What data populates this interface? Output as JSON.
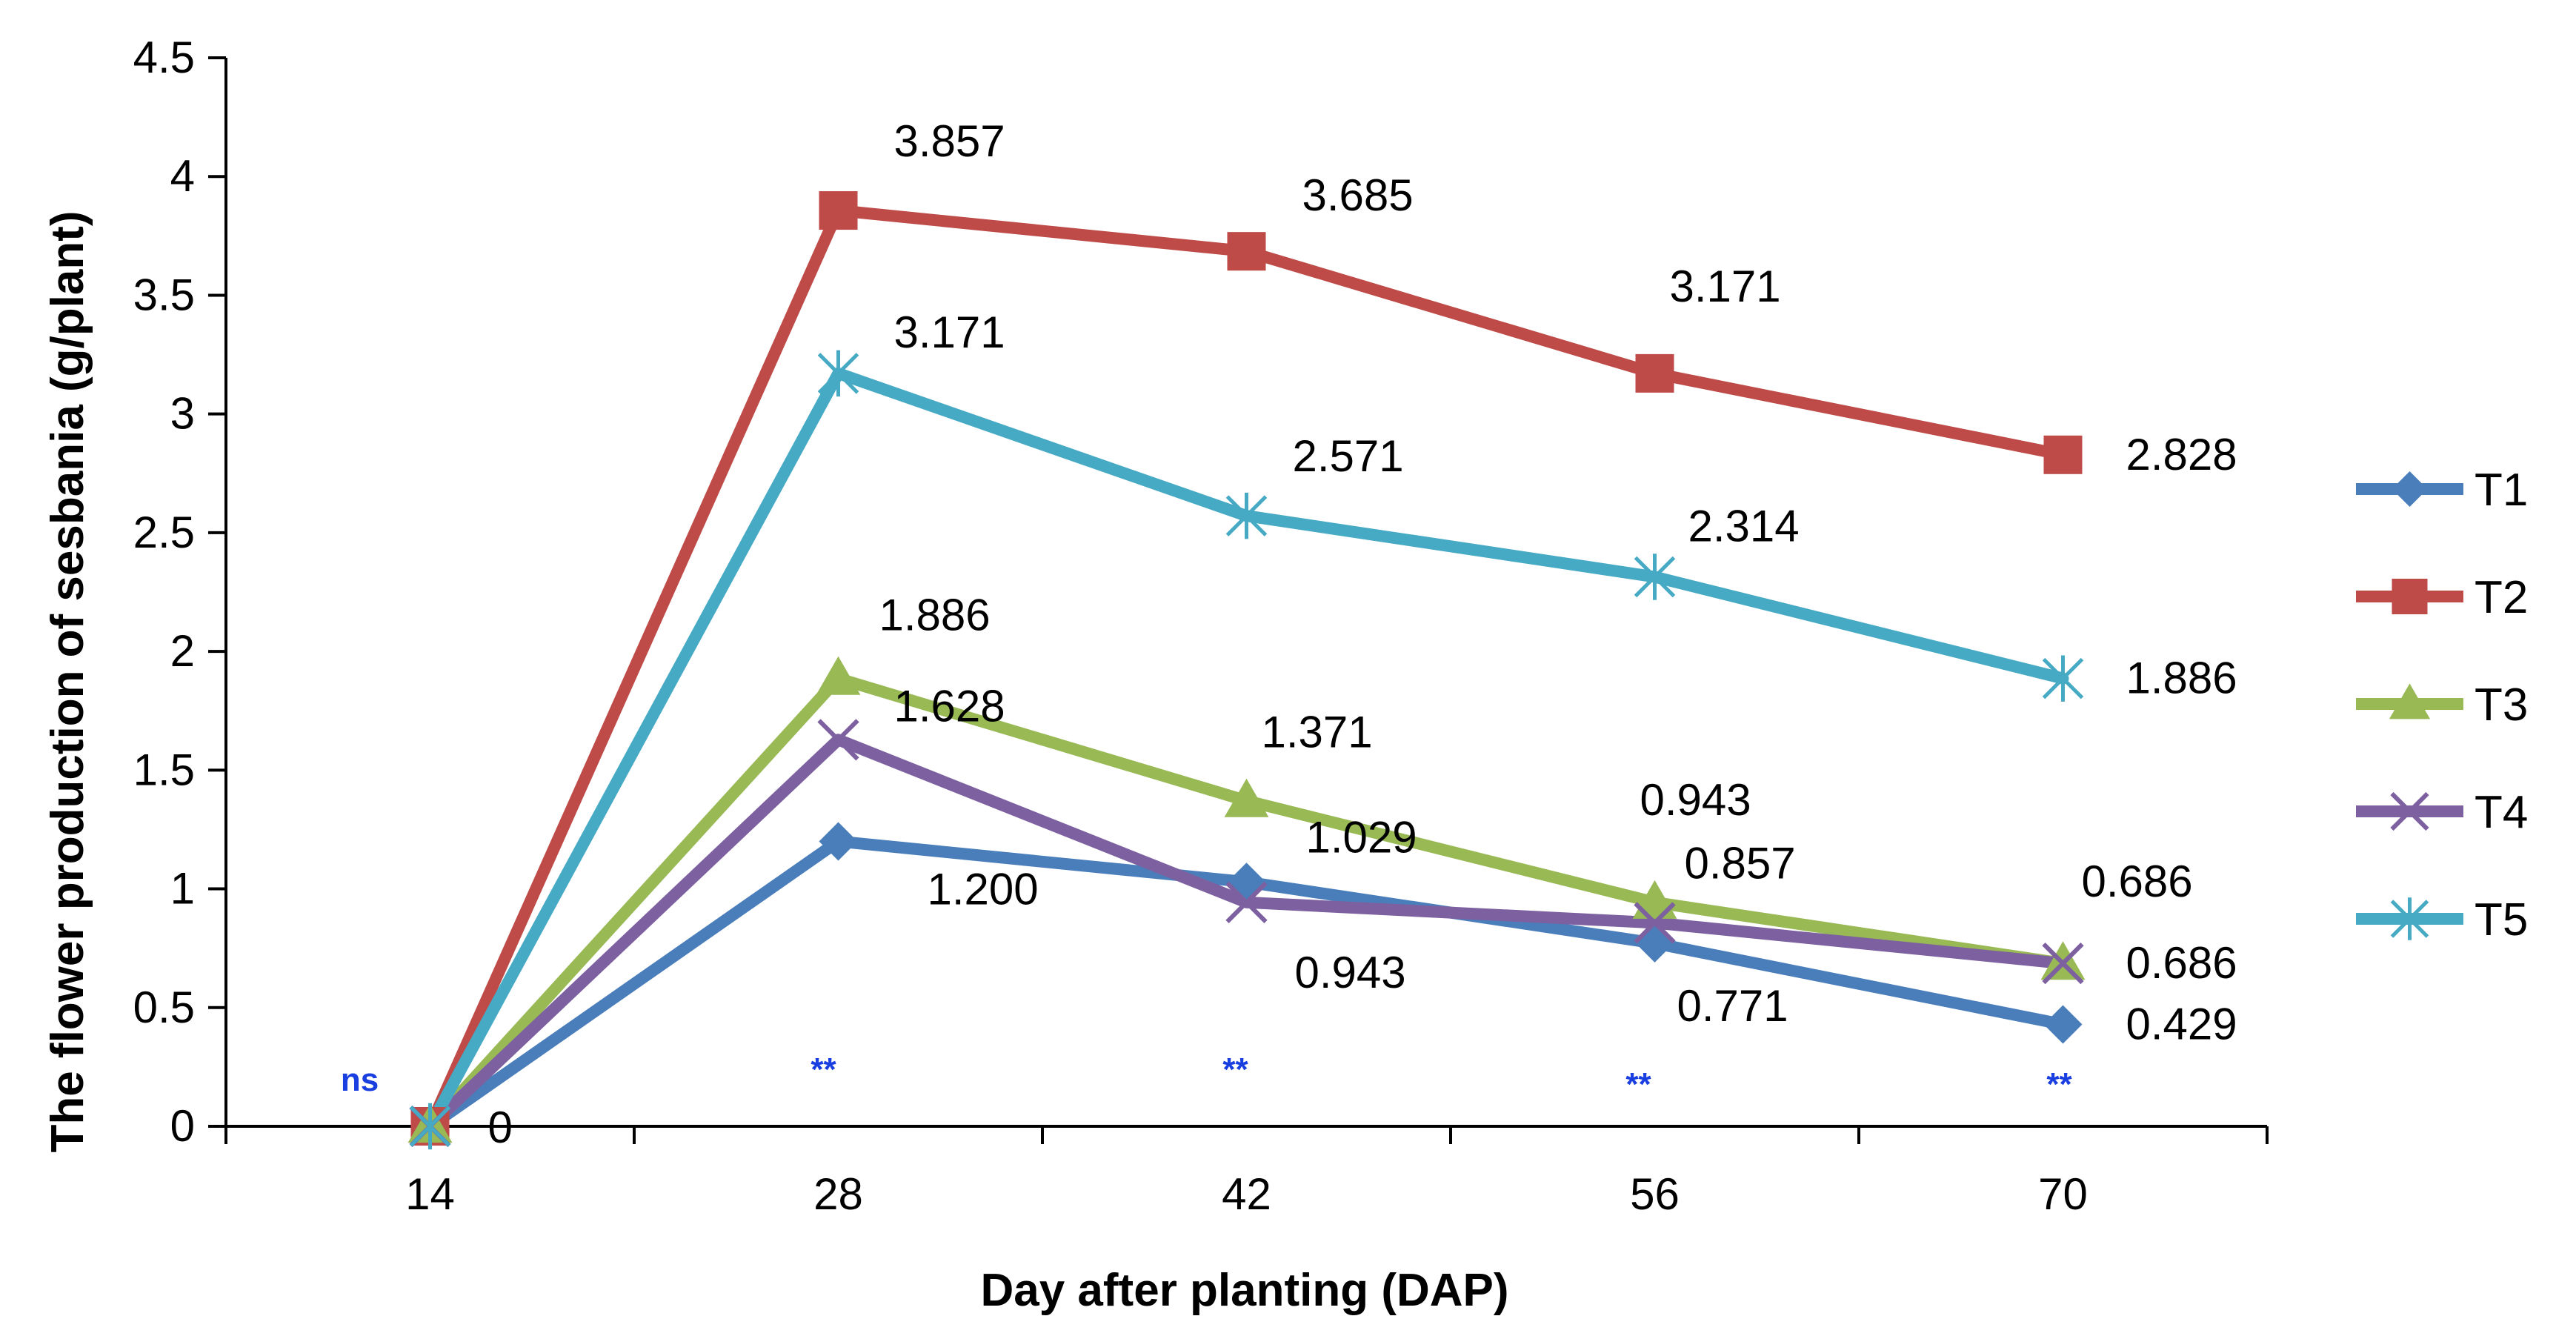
{
  "chart_data": {
    "type": "line",
    "title": "",
    "xlabel": "Day after planting (DAP)",
    "ylabel": "The flower production of sesbania (g/plant)",
    "categories": [
      "14",
      "28",
      "42",
      "56",
      "70"
    ],
    "ylim": [
      0,
      4.5
    ],
    "yticks": [
      "0",
      "0.5",
      "1",
      "1.5",
      "2",
      "2.5",
      "3",
      "3.5",
      "4",
      "4.5"
    ],
    "grid": false,
    "legend": "right",
    "series": [
      {
        "name": "T1",
        "color": "#4a7ebb",
        "marker": "diamond",
        "values": [
          0,
          1.2,
          1.029,
          0.771,
          0.429
        ],
        "labels": [
          "",
          "1.200",
          "1.029",
          "0.771",
          "0.429"
        ]
      },
      {
        "name": "T2",
        "color": "#be4b48",
        "marker": "square",
        "values": [
          0,
          3.857,
          3.685,
          3.171,
          2.828
        ],
        "labels": [
          "",
          "3.857",
          "3.685",
          "3.171",
          "2.828"
        ]
      },
      {
        "name": "T3",
        "color": "#98b954",
        "marker": "triangle",
        "values": [
          0,
          1.886,
          1.371,
          0.943,
          0.686
        ],
        "labels": [
          "",
          "1.886",
          "1.371",
          "0.943",
          "0.686"
        ]
      },
      {
        "name": "T4",
        "color": "#7d60a0",
        "marker": "x",
        "values": [
          0,
          1.628,
          0.943,
          0.857,
          0.686
        ],
        "labels": [
          "",
          "1.628",
          "0.943",
          "0.857",
          "0.686"
        ]
      },
      {
        "name": "T5",
        "color": "#46aac5",
        "marker": "star",
        "values": [
          0,
          3.171,
          2.571,
          2.314,
          1.886
        ],
        "labels": [
          "",
          "3.171",
          "2.571",
          "2.314",
          "1.886"
        ]
      }
    ],
    "zero_label": "0",
    "significance": [
      "ns",
      "**",
      "**",
      "**",
      "**"
    ],
    "significance_color": "#1a3fe0"
  }
}
